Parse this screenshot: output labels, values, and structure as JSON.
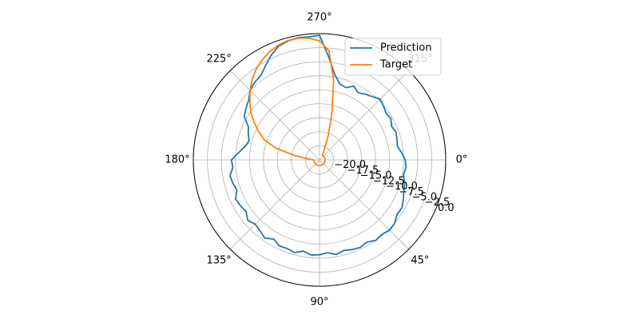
{
  "chart_data": {
    "type": "polar",
    "x": [
      0,
      5,
      10,
      15,
      20,
      25,
      30,
      35,
      40,
      45,
      50,
      55,
      60,
      65,
      70,
      75,
      80,
      85,
      90,
      95,
      100,
      105,
      110,
      115,
      120,
      125,
      130,
      135,
      140,
      145,
      150,
      155,
      160,
      165,
      170,
      175,
      180,
      185,
      190,
      195,
      200,
      205,
      210,
      215,
      220,
      225,
      230,
      235,
      240,
      245,
      250,
      255,
      260,
      265,
      270,
      275,
      280,
      285,
      290,
      295,
      300,
      305,
      310,
      315,
      320,
      325,
      330,
      335,
      340,
      345,
      350,
      355,
      360
    ],
    "series": [
      {
        "name": "Prediction",
        "color": "#1f77b4",
        "values": [
          -7.2,
          -7.0,
          -7.3,
          -6.8,
          -6.5,
          -6.0,
          -5.5,
          -5.6,
          -5.0,
          -4.8,
          -5.2,
          -5.0,
          -5.6,
          -5.3,
          -5.5,
          -5.8,
          -5.4,
          -5.9,
          -5.6,
          -5.5,
          -6.0,
          -5.4,
          -5.7,
          -5.6,
          -6.2,
          -5.5,
          -6.0,
          -6.3,
          -5.8,
          -6.5,
          -6.2,
          -6.0,
          -6.8,
          -6.5,
          -6.3,
          -7.0,
          -6.8,
          -8.0,
          -9.0,
          -9.5,
          -9.0,
          -8.5,
          -7.0,
          -6.5,
          -6.0,
          -5.0,
          -4.5,
          -4.2,
          -3.2,
          -2.0,
          -1.0,
          -0.6,
          -0.4,
          -0.5,
          -0.3,
          -4.0,
          -7.0,
          -8.5,
          -8.8,
          -8.0,
          -8.7,
          -8.2,
          -7.8,
          -7.2,
          -7.6,
          -8.0,
          -7.8,
          -8.3,
          -8.0,
          -8.2,
          -8.4,
          -7.8,
          -7.2
        ]
      },
      {
        "name": "Target",
        "color": "#ff7f0e",
        "values": [
          -21.5,
          -21.5,
          -21.5,
          -21.5,
          -21.5,
          -21.5,
          -21.5,
          -21.5,
          -21.5,
          -21.5,
          -21.5,
          -21.5,
          -21.5,
          -21.5,
          -21.5,
          -21.5,
          -21.5,
          -21.5,
          -21.5,
          -21.5,
          -21.5,
          -21.5,
          -21.5,
          -21.5,
          -21.5,
          -21.5,
          -21.5,
          -21.5,
          -21.5,
          -21.5,
          -21.5,
          -21.5,
          -21.5,
          -21.5,
          -21.5,
          -21.5,
          -21.5,
          -20.5,
          -18,
          -14.5,
          -12,
          -10.5,
          -9,
          -7.5,
          -6.3,
          -5,
          -3.8,
          -2.8,
          -2.0,
          -1.3,
          -0.8,
          -0.5,
          -0.5,
          -0.7,
          -1.3,
          -3,
          -8,
          -14,
          -18,
          -20.5,
          -21.5,
          -21.5,
          -21.5,
          -21.5,
          -21.5,
          -21.5,
          -21.5,
          -21.5,
          -21.5,
          -21.5,
          -21.5,
          -21.5,
          -21.5
        ]
      }
    ],
    "xticks": [
      {
        "value": 0,
        "label": "0°"
      },
      {
        "value": 45,
        "label": "45°"
      },
      {
        "value": 90,
        "label": "90°"
      },
      {
        "value": 135,
        "label": "135°"
      },
      {
        "value": 180,
        "label": "180°"
      },
      {
        "value": 225,
        "label": "225°"
      },
      {
        "value": 270,
        "label": "270°"
      },
      {
        "value": 315,
        "label": "315°"
      }
    ],
    "ylim": [
      -22.5,
      0
    ],
    "yticks": [
      {
        "value": -20,
        "label": "−20.0"
      },
      {
        "value": -17.5,
        "label": "−17.5"
      },
      {
        "value": -15,
        "label": "−15.0"
      },
      {
        "value": -12.5,
        "label": "−12.5"
      },
      {
        "value": -10,
        "label": "−10.0"
      },
      {
        "value": -7.5,
        "label": "−7.5"
      },
      {
        "value": -5,
        "label": "−5.0"
      },
      {
        "value": -2.5,
        "label": "−2.5"
      },
      {
        "value": 0,
        "label": "0.0"
      }
    ],
    "grid": true,
    "legend": "upper right"
  }
}
